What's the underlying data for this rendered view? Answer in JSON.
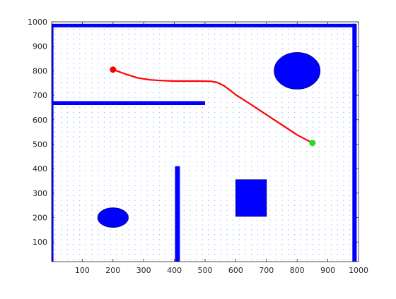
{
  "chart_data": {
    "type": "scatter",
    "title": "",
    "xlabel": "",
    "ylabel": "",
    "xlim": [
      0,
      1000
    ],
    "ylim": [
      20,
      1000
    ],
    "xticks": [
      "100",
      "200",
      "300",
      "400",
      "500",
      "600",
      "700",
      "800",
      "900",
      "1000"
    ],
    "yticks": [
      "100",
      "200",
      "300",
      "400",
      "500",
      "600",
      "700",
      "800",
      "900",
      "1000"
    ],
    "grid": false,
    "legend": "none",
    "colors": {
      "obstacle": "#0000ff",
      "obstacle_edge": "#000080",
      "path": "#ff0000",
      "start": "#ff0000",
      "goal": "#22dd22",
      "field": "#3377ff"
    },
    "walls": [
      {
        "name": "top-wall",
        "x": [
          0,
          990
        ],
        "y": [
          978,
          992
        ]
      },
      {
        "name": "right-wall",
        "x": [
          980,
          994
        ],
        "y": [
          20,
          992
        ]
      },
      {
        "name": "left-wall",
        "x": [
          0,
          6
        ],
        "y": [
          20,
          992
        ]
      },
      {
        "name": "horizontal-wall",
        "x": [
          0,
          500
        ],
        "y": [
          660,
          676
        ]
      },
      {
        "name": "vertical-wall",
        "x": [
          402,
          418
        ],
        "y": [
          20,
          410
        ]
      }
    ],
    "obstacles": [
      {
        "name": "ellipse-obstacle-top-right",
        "shape": "ellipse",
        "cx": 800,
        "cy": 800,
        "rx": 75,
        "ry": 75
      },
      {
        "name": "rectangle-obstacle",
        "shape": "rect",
        "x": [
          600,
          700
        ],
        "y": [
          205,
          355
        ]
      },
      {
        "name": "ellipse-obstacle-bottom-left",
        "shape": "ellipse",
        "cx": 200,
        "cy": 200,
        "rx": 50,
        "ry": 40
      }
    ],
    "path": {
      "x": [
        200,
        240,
        280,
        320,
        360,
        400,
        440,
        480,
        520,
        540,
        560,
        580,
        600,
        640,
        680,
        720,
        760,
        800,
        850
      ],
      "y": [
        805,
        787,
        771,
        763,
        760,
        758,
        758,
        758,
        757,
        752,
        740,
        722,
        702,
        670,
        637,
        604,
        571,
        538,
        505
      ]
    },
    "start": {
      "x": 200,
      "y": 805
    },
    "goal": {
      "x": 850,
      "y": 505
    }
  }
}
